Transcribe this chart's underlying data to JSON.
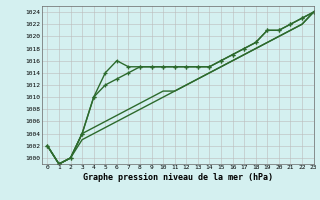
{
  "title": "Graphe pression niveau de la mer (hPa)",
  "bg_color": "#d4f0f0",
  "grid_color": "#bbbbbb",
  "line_color": "#2d6a2d",
  "ylim": [
    999,
    1025
  ],
  "yticks": [
    1000,
    1002,
    1004,
    1006,
    1008,
    1010,
    1012,
    1014,
    1016,
    1018,
    1020,
    1022,
    1024
  ],
  "xlim": [
    -0.5,
    23
  ],
  "xticks": [
    0,
    1,
    2,
    3,
    4,
    5,
    6,
    7,
    8,
    9,
    10,
    11,
    12,
    13,
    14,
    15,
    16,
    17,
    18,
    19,
    20,
    21,
    22,
    23
  ],
  "series": [
    {
      "y": [
        1002,
        999,
        1000,
        1004,
        1010,
        1014,
        1016,
        1015,
        1015,
        1015,
        1015,
        1015,
        1015,
        1015,
        1015,
        1016,
        1017,
        1018,
        1019,
        1021,
        1021,
        1022,
        1023,
        1024
      ],
      "marker": "+",
      "lw": 1.0
    },
    {
      "y": [
        1002,
        999,
        1000,
        1004,
        1010,
        1012,
        1013,
        1014,
        1015,
        1015,
        1015,
        1015,
        1015,
        1015,
        1015,
        1016,
        1017,
        1018,
        1019,
        1021,
        1021,
        1022,
        1023,
        1024
      ],
      "marker": "+",
      "lw": 1.0
    },
    {
      "y": [
        1002,
        999,
        1000,
        1004,
        1005,
        1006,
        1007,
        1008,
        1009,
        1010,
        1011,
        1011,
        1012,
        1013,
        1014,
        1015,
        1016,
        1017,
        1018,
        1019,
        1020,
        1021,
        1022,
        1024
      ],
      "marker": null,
      "lw": 1.0
    },
    {
      "y": [
        1002,
        999,
        1000,
        1003,
        1004,
        1005,
        1006,
        1007,
        1008,
        1009,
        1010,
        1011,
        1012,
        1013,
        1014,
        1015,
        1016,
        1017,
        1018,
        1019,
        1020,
        1021,
        1022,
        1024
      ],
      "marker": null,
      "lw": 1.0
    }
  ]
}
